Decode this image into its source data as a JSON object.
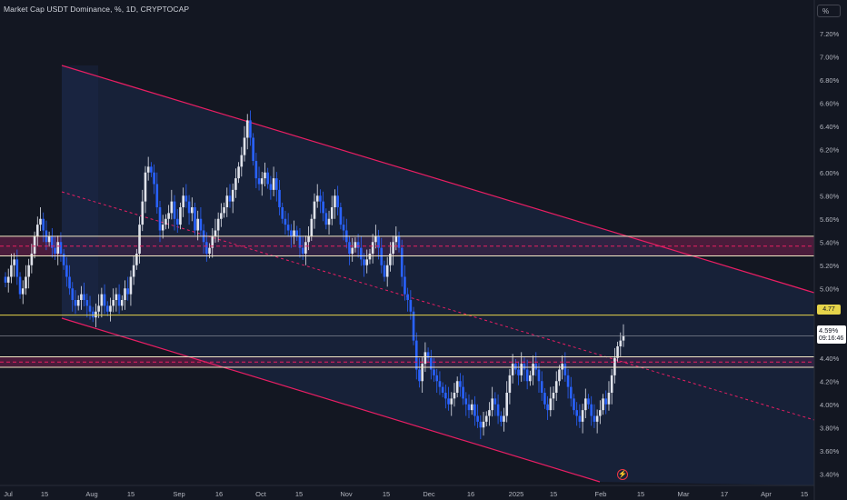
{
  "header": {
    "title": "Market Cap USDT Dominance, %, 1D, CRYPTOCAP",
    "unit": "%"
  },
  "price_tag": {
    "price": "4.59%",
    "countdown": "09:16:46"
  },
  "level_tag": {
    "label": "4.77"
  },
  "colors": {
    "background": "#131722",
    "candle": "#2962ff",
    "channel": "#e91e63",
    "horizontal_level": "#e6d44a",
    "zone_fill": "#5d1f44",
    "channel_fill": "#1b2a4a"
  },
  "chart_data": {
    "type": "candlestick",
    "x_tick_labels": [
      "Jul",
      "15",
      "Aug",
      "15",
      "Sep",
      "16",
      "Oct",
      "15",
      "Nov",
      "15",
      "Dec",
      "16",
      "2025",
      "15",
      "Feb",
      "15",
      "Mar",
      "17",
      "Apr",
      "15"
    ],
    "y_tick_labels": [
      "7.20%",
      "7.00%",
      "6.80%",
      "6.60%",
      "6.40%",
      "6.20%",
      "6.00%",
      "5.80%",
      "5.60%",
      "5.40%",
      "5.20%",
      "5.00%",
      "4.80%",
      "4.60%",
      "4.40%",
      "4.20%",
      "4.00%",
      "3.80%",
      "3.60%",
      "3.40%"
    ],
    "ylim": [
      3.3,
      7.3
    ],
    "levels": [
      5.45,
      5.28,
      4.77,
      4.41,
      4.32
    ],
    "resistance_zone": [
      5.28,
      5.45
    ],
    "support_zone": [
      4.32,
      4.41
    ],
    "closes": [
      5.05,
      5.1,
      5.2,
      5.25,
      5.1,
      4.95,
      5.0,
      5.1,
      5.2,
      5.3,
      5.45,
      5.55,
      5.6,
      5.5,
      5.4,
      5.45,
      5.35,
      5.3,
      5.4,
      5.3,
      5.2,
      5.1,
      5.0,
      4.9,
      4.85,
      4.9,
      4.95,
      4.9,
      4.85,
      4.8,
      4.75,
      4.8,
      4.85,
      4.95,
      4.85,
      4.8,
      4.85,
      4.9,
      4.95,
      4.85,
      4.9,
      5.0,
      4.95,
      5.1,
      5.2,
      5.3,
      5.55,
      5.75,
      6.0,
      6.05,
      6.0,
      5.9,
      5.7,
      5.5,
      5.55,
      5.6,
      5.65,
      5.75,
      5.6,
      5.55,
      5.7,
      5.8,
      5.75,
      5.65,
      5.7,
      5.5,
      5.6,
      5.5,
      5.4,
      5.3,
      5.35,
      5.45,
      5.5,
      5.6,
      5.65,
      5.7,
      5.8,
      5.75,
      5.85,
      5.95,
      6.05,
      6.15,
      6.3,
      6.45,
      6.3,
      6.1,
      5.95,
      5.9,
      5.95,
      6.0,
      5.9,
      5.85,
      5.95,
      5.85,
      5.7,
      5.6,
      5.55,
      5.5,
      5.45,
      5.5,
      5.45,
      5.35,
      5.3,
      5.4,
      5.45,
      5.6,
      5.75,
      5.8,
      5.75,
      5.65,
      5.55,
      5.6,
      5.7,
      5.8,
      5.7,
      5.55,
      5.5,
      5.4,
      5.3,
      5.35,
      5.4,
      5.35,
      5.25,
      5.2,
      5.25,
      5.3,
      5.4,
      5.45,
      5.35,
      5.2,
      5.1,
      5.2,
      5.3,
      5.4,
      5.45,
      5.35,
      5.1,
      4.95,
      4.9,
      4.8,
      4.55,
      4.3,
      4.2,
      4.35,
      4.45,
      4.4,
      4.3,
      4.25,
      4.2,
      4.15,
      4.1,
      4.05,
      4.0,
      4.05,
      4.1,
      4.2,
      4.15,
      4.05,
      4.0,
      3.95,
      4.0,
      3.9,
      3.85,
      3.8,
      3.85,
      3.9,
      3.95,
      4.05,
      4.0,
      3.9,
      3.85,
      3.9,
      4.1,
      4.25,
      4.35,
      4.3,
      4.25,
      4.35,
      4.3,
      4.2,
      4.25,
      4.35,
      4.3,
      4.2,
      4.1,
      4.0,
      3.95,
      4.05,
      4.1,
      4.2,
      4.3,
      4.35,
      4.25,
      4.15,
      4.05,
      3.95,
      3.9,
      3.85,
      3.95,
      4.05,
      4.0,
      3.9,
      3.85,
      3.9,
      3.95,
      4.05,
      4.0,
      4.1,
      4.25,
      4.4,
      4.5,
      4.55,
      4.59
    ]
  }
}
